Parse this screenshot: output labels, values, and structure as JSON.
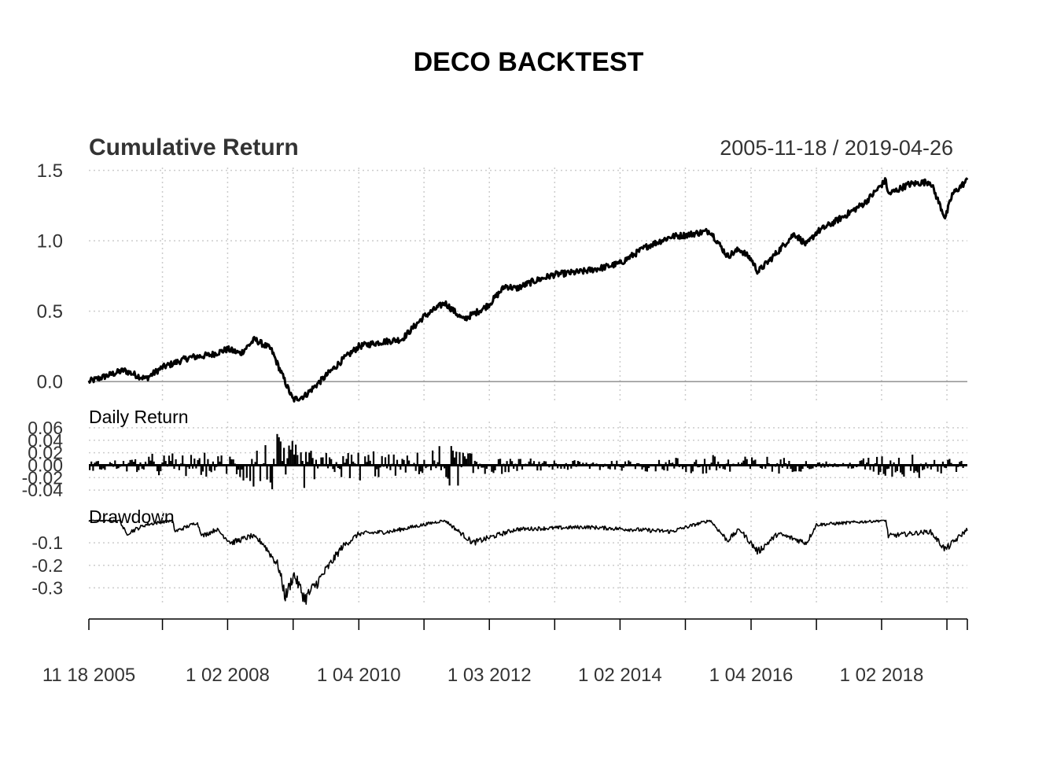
{
  "figure": {
    "title": "DECO BACKTEST"
  },
  "chart_data": [
    {
      "panel": "cumulative",
      "type": "line",
      "title": "Cumulative Return",
      "period_label": "2005-11-18 / 2019-04-26",
      "y_ticks": [
        0.0,
        0.5,
        1.0,
        1.5
      ],
      "y_tick_labels": [
        "0.0",
        "0.5",
        "1.0",
        "1.5"
      ],
      "ylim": [
        -0.15,
        1.52
      ],
      "grid": true,
      "x": [
        "2005-11-18",
        "2006-06-01",
        "2006-10-01",
        "2007-01-01",
        "2007-06-01",
        "2007-10-01",
        "2008-01-02",
        "2008-03-15",
        "2008-06-01",
        "2008-09-01",
        "2008-11-01",
        "2009-01-01",
        "2009-03-09",
        "2009-06-01",
        "2009-10-01",
        "2010-01-04",
        "2010-05-01",
        "2010-09-01",
        "2011-01-01",
        "2011-04-29",
        "2011-08-10",
        "2011-12-01",
        "2012-01-03",
        "2012-04-01",
        "2012-06-01",
        "2012-09-01",
        "2013-01-01",
        "2013-06-01",
        "2013-10-01",
        "2014-01-02",
        "2014-06-01",
        "2014-10-15",
        "2015-01-01",
        "2015-05-20",
        "2015-08-25",
        "2015-11-01",
        "2016-01-04",
        "2016-02-11",
        "2016-05-01",
        "2016-09-01",
        "2016-11-09",
        "2017-01-03",
        "2017-06-01",
        "2017-10-01",
        "2018-01-26",
        "2018-02-08",
        "2018-06-01",
        "2018-10-01",
        "2018-12-24",
        "2019-02-01",
        "2019-04-26"
      ],
      "y": [
        0.0,
        0.08,
        0.02,
        0.1,
        0.17,
        0.19,
        0.23,
        0.2,
        0.3,
        0.23,
        0.05,
        -0.13,
        -0.1,
        0.0,
        0.15,
        0.25,
        0.28,
        0.3,
        0.46,
        0.56,
        0.44,
        0.52,
        0.55,
        0.68,
        0.66,
        0.71,
        0.76,
        0.78,
        0.81,
        0.84,
        0.96,
        1.03,
        1.04,
        1.07,
        0.89,
        0.94,
        0.87,
        0.78,
        0.88,
        1.05,
        0.97,
        1.06,
        1.17,
        1.27,
        1.43,
        1.33,
        1.4,
        1.42,
        1.16,
        1.33,
        1.43
      ]
    },
    {
      "panel": "daily_return",
      "type": "bar",
      "title": "Daily Return",
      "y_ticks": [
        -0.04,
        -0.02,
        0.0,
        0.02,
        0.04,
        0.06
      ],
      "y_tick_labels": [
        "-0.04",
        "-0.02",
        "0.00",
        "0.02",
        "0.04",
        "0.06"
      ],
      "ylim": [
        -0.055,
        0.07
      ],
      "grid": true,
      "volatility_x": [
        "2005-11-18",
        "2007-02-27",
        "2007-08-01",
        "2008-01-02",
        "2008-09-15",
        "2008-10-15",
        "2008-12-01",
        "2009-03-01",
        "2009-06-01",
        "2010-05-06",
        "2010-09-01",
        "2011-08-08",
        "2011-11-01",
        "2012-06-01",
        "2013-06-01",
        "2014-10-15",
        "2015-08-24",
        "2016-02-01",
        "2016-06-24",
        "2017-06-01",
        "2018-02-05",
        "2018-12-24",
        "2019-04-26"
      ],
      "volatility_y": [
        0.008,
        0.02,
        0.018,
        0.018,
        0.055,
        0.06,
        0.04,
        0.035,
        0.022,
        0.025,
        0.012,
        0.04,
        0.022,
        0.01,
        0.01,
        0.012,
        0.022,
        0.015,
        0.012,
        0.005,
        0.022,
        0.018,
        0.006
      ]
    },
    {
      "panel": "drawdown",
      "type": "line",
      "title": "Drawdown",
      "y_ticks": [
        -0.3,
        -0.2,
        -0.1
      ],
      "y_tick_labels": [
        "-0.3",
        "-0.2",
        "-0.1"
      ],
      "ylim": [
        -0.365,
        0.04
      ],
      "grid": true,
      "x": [
        "2005-11-18",
        "2006-05-10",
        "2006-06-13",
        "2006-10-01",
        "2007-02-27",
        "2007-03-15",
        "2007-07-15",
        "2007-08-15",
        "2007-11-01",
        "2008-01-22",
        "2008-05-15",
        "2008-07-15",
        "2008-10-10",
        "2008-11-20",
        "2009-01-06",
        "2009-03-09",
        "2009-06-01",
        "2009-10-01",
        "2010-01-04",
        "2010-07-01",
        "2011-04-29",
        "2011-10-03",
        "2012-06-01",
        "2013-06-24",
        "2014-10-15",
        "2015-05-20",
        "2015-08-25",
        "2015-11-01",
        "2016-02-11",
        "2016-06-01",
        "2016-11-09",
        "2017-01-03",
        "2018-01-26",
        "2018-02-08",
        "2018-10-01",
        "2018-12-24",
        "2019-04-26"
      ],
      "y": [
        0.0,
        0.0,
        -0.06,
        -0.02,
        0.0,
        -0.05,
        -0.01,
        -0.07,
        -0.04,
        -0.1,
        -0.07,
        -0.1,
        -0.2,
        -0.34,
        -0.24,
        -0.35,
        -0.26,
        -0.12,
        -0.06,
        -0.05,
        0.0,
        -0.1,
        -0.04,
        -0.03,
        -0.05,
        0.0,
        -0.09,
        -0.04,
        -0.14,
        -0.06,
        -0.1,
        -0.02,
        0.0,
        -0.07,
        -0.05,
        -0.13,
        -0.04
      ]
    },
    {
      "panel": "x_axis",
      "type": "axis",
      "x_ticks": [
        "2005-11-18",
        "2007-01-03",
        "2008-01-02",
        "2009-01-02",
        "2010-01-04",
        "2011-01-03",
        "2012-01-03",
        "2013-01-02",
        "2014-01-02",
        "2015-01-02",
        "2016-01-04",
        "2017-01-03",
        "2018-01-02",
        "2019-01-02"
      ],
      "x_tick_labels": [
        "11 18 2005",
        "1 02 2008",
        "1 04 2010",
        "1 03 2012",
        "1 02 2014",
        "1 04 2016",
        "1 02 2018"
      ],
      "x_tick_label_dates": [
        "2005-11-18",
        "2008-01-02",
        "2010-01-04",
        "2012-01-03",
        "2014-01-02",
        "2016-01-04",
        "2018-01-02"
      ]
    }
  ]
}
